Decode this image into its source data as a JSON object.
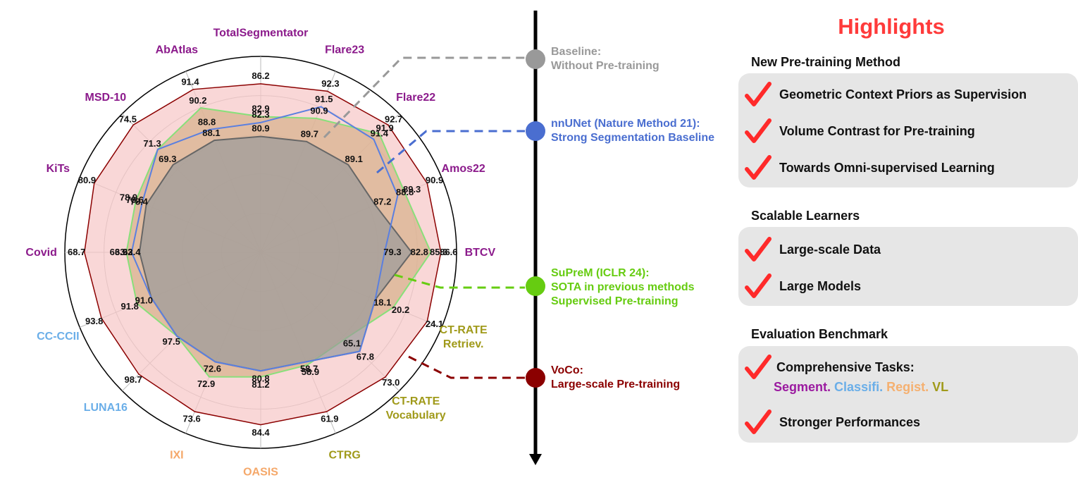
{
  "chart_data": {
    "type": "radar",
    "axes": [
      {
        "label": "TotalSegmentator",
        "color": "#8b1a8b",
        "baseline": 80.9,
        "nnunet": 82.3,
        "suprem": 82.9,
        "voco": 86.2,
        "fmax": 0.86,
        "vals": [
          "80.9",
          "82.3",
          "82.9",
          "86.2"
        ]
      },
      {
        "label": "Flare23",
        "color": "#8b1a8b",
        "baseline": 89.7,
        "nnunet": 91.5,
        "suprem": 90.9,
        "voco": 92.3,
        "fmax": 0.89,
        "vals": [
          "89.7",
          "90.9",
          "91.5",
          "92.3"
        ]
      },
      {
        "label": "Flare22",
        "color": "#8b1a8b",
        "baseline": 89.1,
        "nnunet": 91.4,
        "suprem": 91.9,
        "voco": 92.7,
        "fmax": 0.92,
        "vals": [
          "89.1",
          "91.4",
          "91.9",
          "92.7"
        ]
      },
      {
        "label": "Amos22",
        "color": "#8b1a8b",
        "baseline": 87.2,
        "nnunet": 88.8,
        "suprem": 89.3,
        "voco": 90.9,
        "fmax": 0.92,
        "vals": [
          "87.2",
          "88.8",
          "89.3",
          "90.9"
        ]
      },
      {
        "label": "BTCV",
        "color": "#8b1a8b",
        "baseline": 82.8,
        "nnunet": 79.3,
        "suprem": 85.3,
        "voco": 86.6,
        "fmax": 0.92,
        "vals": [
          "79.3",
          "82.8",
          "85.3",
          "86.6"
        ]
      },
      {
        "label": "CT-RATE Retriev.",
        "color": "#a09a1a",
        "baseline": 18.1,
        "suprem": 20.2,
        "voco": 24.1,
        "fmax": 0.92,
        "vals": [
          "18.1",
          "20.2",
          "24.1"
        ]
      },
      {
        "label": "CT-RATE Vocabulary",
        "color": "#a09a1a",
        "baseline": 67.8,
        "suprem": 65.1,
        "voco": 73.0,
        "fmax": 0.9,
        "vals": [
          "65.1",
          "67.8",
          "73.0"
        ]
      },
      {
        "label": "CTRG",
        "color": "#a09a1a",
        "baseline": 58.7,
        "suprem": 58.9,
        "voco": 61.9,
        "fmax": 0.88,
        "vals": [
          "58.7",
          "58.9",
          "61.9"
        ]
      },
      {
        "label": "OASIS",
        "color": "#f5a86a",
        "baseline": 80.8,
        "suprem": 81.2,
        "voco": 84.4,
        "fmax": 0.88,
        "vals": [
          "80.8",
          "81.2",
          "84.4"
        ]
      },
      {
        "label": "IXI",
        "color": "#f5a86a",
        "baseline": 72.6,
        "suprem": 72.9,
        "voco": 73.6,
        "fmax": 0.88,
        "vals": [
          "72.6",
          "72.9",
          "73.6"
        ]
      },
      {
        "label": "LUNA16",
        "color": "#6aaee8",
        "baseline": 97.5,
        "suprem": 97.5,
        "voco": 98.7,
        "fmax": 0.88,
        "vals": [
          "97.5",
          "98.7"
        ]
      },
      {
        "label": "CC-CCII",
        "color": "#6aaee8",
        "baseline": 91.0,
        "suprem": 91.8,
        "voco": 93.8,
        "fmax": 0.88,
        "vals": [
          "91.0",
          "91.8",
          "93.8"
        ]
      },
      {
        "label": "Covid",
        "color": "#8b1a8b",
        "baseline": 62.4,
        "nnunet": 63.3,
        "suprem": 63.9,
        "voco": 68.7,
        "fmax": 0.9,
        "vals": [
          "62.4",
          "63.3",
          "63.9",
          "68.7"
        ]
      },
      {
        "label": "KiTs",
        "color": "#8b1a8b",
        "baseline": 78.4,
        "nnunet": 78.6,
        "suprem": 78.9,
        "voco": 80.9,
        "fmax": 0.92,
        "vals": [
          "78.4",
          "78.6",
          "78.9",
          "80.9"
        ]
      },
      {
        "label": "MSD-10",
        "color": "#8b1a8b",
        "baseline": 69.3,
        "nnunet": 71.3,
        "suprem": 71.3,
        "voco": 74.5,
        "fmax": 0.92,
        "vals": [
          "69.3",
          "71.3",
          "74.5"
        ]
      },
      {
        "label": "AbAtlas",
        "color": "#8b1a8b",
        "baseline": 88.1,
        "nnunet": 88.8,
        "suprem": 90.2,
        "voco": 91.4,
        "fmax": 0.9,
        "vals": [
          "88.1",
          "88.8",
          "90.2",
          "91.4"
        ]
      }
    ],
    "series": [
      {
        "key": "voco",
        "stroke": "#8b0000",
        "fill": "#f7c6c6"
      },
      {
        "key": "suprem",
        "stroke": "#88e07a",
        "fill": "#d7b08a"
      },
      {
        "key": "baseline",
        "stroke": "#666666",
        "fill": "#9a9a9a"
      },
      {
        "key": "nnunet",
        "stroke": "#5a7fe0",
        "fill": "none"
      }
    ]
  },
  "timeline": {
    "baseline": {
      "line1": "Baseline:",
      "line2": "Without Pre-training",
      "color": "#999999"
    },
    "nnunet": {
      "line1": "nnUNet (Nature Method 21):",
      "line2": "Strong Segmentation Baseline",
      "color": "#4a6ed0"
    },
    "suprem": {
      "line1": "SuPreM (ICLR 24):",
      "line2": "SOTA in previous methods",
      "line3": "Supervised Pre-training",
      "color": "#66cc11"
    },
    "voco": {
      "line1": "VoCo:",
      "line2": "Large-scale Pre-training",
      "color": "#8b0000"
    }
  },
  "highlights": {
    "title": "Highlights",
    "sections": [
      {
        "title": "New Pre-training Method",
        "items": [
          "Geometric Context Priors as Supervision",
          "Volume Contrast for Pre-training",
          "Towards Omni-supervised Learning"
        ]
      },
      {
        "title": "Scalable Learners",
        "items": [
          "Large-scale Data",
          "Large Models"
        ]
      },
      {
        "title": "Evaluation Benchmark",
        "items": [
          "Comprehensive Tasks:",
          "Stronger Performances"
        ],
        "tags": [
          {
            "text": "Segment.",
            "color": "#9b1aa0"
          },
          {
            "text": "Classifi.",
            "color": "#6aaee8"
          },
          {
            "text": "Regist.",
            "color": "#f5b070"
          },
          {
            "text": "VL",
            "color": "#a09a1a"
          }
        ]
      }
    ]
  }
}
